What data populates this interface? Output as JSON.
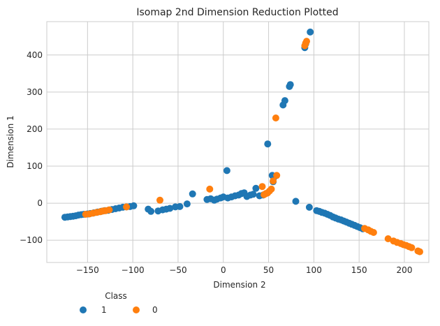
{
  "chart_data": {
    "type": "scatter",
    "title": "Isomap 2nd Dimension Reduction Plotted",
    "xlabel": "Dimension 2",
    "ylabel": "Dimension 1",
    "xlim": [
      -195,
      227
    ],
    "ylim": [
      -160,
      490
    ],
    "xticks": [
      -150,
      -100,
      -50,
      0,
      50,
      100,
      150,
      200
    ],
    "yticks": [
      -100,
      0,
      100,
      200,
      300,
      400
    ],
    "grid": true,
    "legend": {
      "title": "Class",
      "placement": "bottom-left outside"
    },
    "series": [
      {
        "name": "1",
        "color": "#1f77b4",
        "points": [
          [
            -175,
            -38
          ],
          [
            -172,
            -37
          ],
          [
            -169,
            -36
          ],
          [
            -166,
            -35
          ],
          [
            -163,
            -34
          ],
          [
            -160,
            -32
          ],
          [
            -157,
            -31
          ],
          [
            -154,
            -30
          ],
          [
            -150,
            -29
          ],
          [
            -147,
            -28
          ],
          [
            -143,
            -26
          ],
          [
            -139,
            -24
          ],
          [
            -135,
            -22
          ],
          [
            -131,
            -20
          ],
          [
            -127,
            -19
          ],
          [
            -123,
            -17
          ],
          [
            -119,
            -15
          ],
          [
            -115,
            -13
          ],
          [
            -111,
            -11
          ],
          [
            -107,
            -10
          ],
          [
            -103,
            -9
          ],
          [
            -99,
            -7
          ],
          [
            -83,
            -16
          ],
          [
            -80,
            -22
          ],
          [
            -72,
            -21
          ],
          [
            -67,
            -18
          ],
          [
            -63,
            -16
          ],
          [
            -59,
            -14
          ],
          [
            -53,
            -10
          ],
          [
            -48,
            -9
          ],
          [
            -40,
            -2
          ],
          [
            -34,
            25
          ],
          [
            -18,
            10
          ],
          [
            -14,
            12
          ],
          [
            -10,
            8
          ],
          [
            -7,
            11
          ],
          [
            -3,
            14
          ],
          [
            0,
            17
          ],
          [
            4,
            88
          ],
          [
            5,
            14
          ],
          [
            9,
            17
          ],
          [
            13,
            20
          ],
          [
            17,
            22
          ],
          [
            20,
            26
          ],
          [
            23,
            28
          ],
          [
            26,
            18
          ],
          [
            30,
            22
          ],
          [
            33,
            24
          ],
          [
            36,
            40
          ],
          [
            40,
            20
          ],
          [
            44,
            22
          ],
          [
            49,
            160
          ],
          [
            54,
            75
          ],
          [
            55,
            58
          ],
          [
            56,
            70
          ],
          [
            66,
            265
          ],
          [
            68,
            277
          ],
          [
            73,
            315
          ],
          [
            74,
            320
          ],
          [
            80,
            5
          ],
          [
            90,
            420
          ],
          [
            91,
            430
          ],
          [
            96,
            462
          ],
          [
            95,
            -11
          ],
          [
            103,
            -20
          ],
          [
            106,
            -22
          ],
          [
            109,
            -25
          ],
          [
            112,
            -27
          ],
          [
            115,
            -30
          ],
          [
            118,
            -33
          ],
          [
            121,
            -37
          ],
          [
            124,
            -40
          ],
          [
            127,
            -43
          ],
          [
            130,
            -45
          ],
          [
            133,
            -48
          ],
          [
            136,
            -51
          ],
          [
            139,
            -54
          ],
          [
            142,
            -57
          ],
          [
            145,
            -60
          ],
          [
            148,
            -63
          ],
          [
            151,
            -66
          ],
          [
            154,
            -69
          ]
        ]
      },
      {
        "name": "0",
        "color": "#ff7f0e",
        "points": [
          [
            -152,
            -30
          ],
          [
            -148,
            -29
          ],
          [
            -144,
            -27
          ],
          [
            -140,
            -25
          ],
          [
            -136,
            -23
          ],
          [
            -133,
            -21
          ],
          [
            -130,
            -20
          ],
          [
            -126,
            -18
          ],
          [
            -107,
            -10
          ],
          [
            -70,
            8
          ],
          [
            -15,
            38
          ],
          [
            43,
            45
          ],
          [
            45,
            23
          ],
          [
            47,
            26
          ],
          [
            49,
            28
          ],
          [
            51,
            33
          ],
          [
            53,
            38
          ],
          [
            55,
            60
          ],
          [
            58,
            230
          ],
          [
            59,
            75
          ],
          [
            90,
            425
          ],
          [
            91,
            432
          ],
          [
            92,
            437
          ],
          [
            156,
            -68
          ],
          [
            160,
            -72
          ],
          [
            163,
            -76
          ],
          [
            166,
            -79
          ],
          [
            182,
            -96
          ],
          [
            188,
            -102
          ],
          [
            192,
            -106
          ],
          [
            196,
            -109
          ],
          [
            199,
            -112
          ],
          [
            202,
            -114
          ],
          [
            205,
            -117
          ],
          [
            208,
            -120
          ],
          [
            215,
            -129
          ],
          [
            217,
            -131
          ]
        ]
      }
    ]
  }
}
